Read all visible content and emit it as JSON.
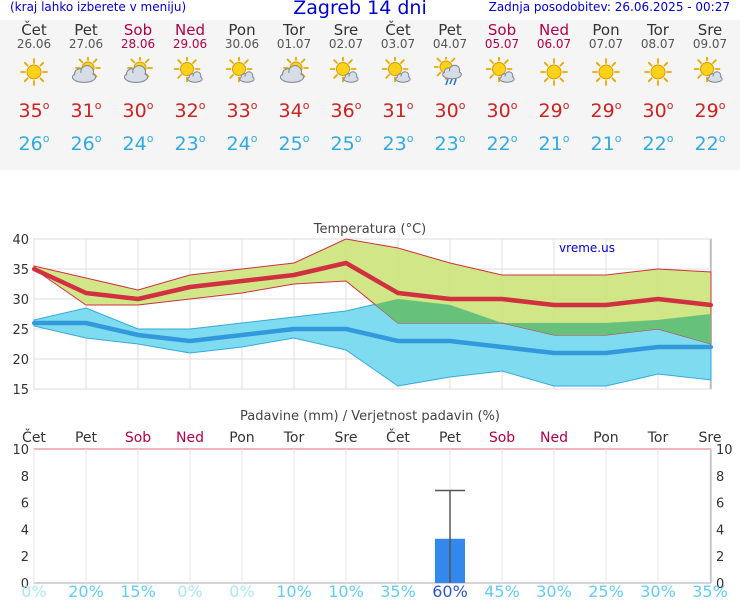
{
  "header": {
    "note": "(kraj lahko izberete v meniju)",
    "title": "Zagreb 14 dni",
    "updated": "Zadnja posodobitev: 26.06.2025 - 00:27"
  },
  "days": [
    {
      "name": "Čet",
      "date": "26.06",
      "weekend": false,
      "icon": "sun-icon",
      "tmax": "35",
      "tmin": "26"
    },
    {
      "name": "Pet",
      "date": "27.06",
      "weekend": false,
      "icon": "partly-cloudy-icon",
      "tmax": "31",
      "tmin": "26"
    },
    {
      "name": "Sob",
      "date": "28.06",
      "weekend": true,
      "icon": "partly-cloudy-icon",
      "tmax": "30",
      "tmin": "24"
    },
    {
      "name": "Ned",
      "date": "29.06",
      "weekend": true,
      "icon": "sun-small-cloud-icon",
      "tmax": "32",
      "tmin": "23"
    },
    {
      "name": "Pon",
      "date": "30.06",
      "weekend": false,
      "icon": "sun-small-cloud-icon",
      "tmax": "33",
      "tmin": "24"
    },
    {
      "name": "Tor",
      "date": "01.07",
      "weekend": false,
      "icon": "partly-cloudy-icon",
      "tmax": "34",
      "tmin": "25"
    },
    {
      "name": "Sre",
      "date": "02.07",
      "weekend": false,
      "icon": "sun-small-cloud-icon",
      "tmax": "36",
      "tmin": "25"
    },
    {
      "name": "Čet",
      "date": "03.07",
      "weekend": false,
      "icon": "sun-small-cloud-icon",
      "tmax": "31",
      "tmin": "23"
    },
    {
      "name": "Pet",
      "date": "04.07",
      "weekend": false,
      "icon": "sun-rain-icon",
      "tmax": "30",
      "tmin": "23"
    },
    {
      "name": "Sob",
      "date": "05.07",
      "weekend": true,
      "icon": "sun-small-cloud-icon",
      "tmax": "30",
      "tmin": "22"
    },
    {
      "name": "Ned",
      "date": "06.07",
      "weekend": true,
      "icon": "sun-icon",
      "tmax": "29",
      "tmin": "21"
    },
    {
      "name": "Pon",
      "date": "07.07",
      "weekend": false,
      "icon": "sun-icon",
      "tmax": "29",
      "tmin": "21"
    },
    {
      "name": "Tor",
      "date": "08.07",
      "weekend": false,
      "icon": "sun-icon",
      "tmax": "30",
      "tmin": "22"
    },
    {
      "name": "Sre",
      "date": "09.07",
      "weekend": false,
      "icon": "sun-small-cloud-icon",
      "tmax": "29",
      "tmin": "22"
    }
  ],
  "colors": {
    "max": "#d03040",
    "min": "#3399dd",
    "max_band": "#cce47a",
    "min_band": "#7fdcf0",
    "overlap": "#66c27a",
    "weekend": "#b0004a",
    "precip": "#3388ee",
    "prob": "#66ccee",
    "prob_high": "#3355cc"
  },
  "chart_data": [
    {
      "type": "line",
      "title": "Temperatura (°C)",
      "watermark": "vreme.us",
      "categories": [
        "Čet",
        "Pet",
        "Sob",
        "Ned",
        "Pon",
        "Tor",
        "Sre",
        "Čet",
        "Pet",
        "Sob",
        "Ned",
        "Pon",
        "Tor",
        "Sre"
      ],
      "ylim": [
        15,
        40
      ],
      "yticks": [
        "15",
        "20",
        "25",
        "30",
        "35",
        "40"
      ],
      "grid": true,
      "series": [
        {
          "name": "max",
          "values": [
            35,
            31,
            30,
            32,
            33,
            34,
            36,
            31,
            30,
            30,
            29,
            29,
            30,
            29
          ]
        },
        {
          "name": "min",
          "values": [
            26,
            26,
            24,
            23,
            24,
            25,
            25,
            23,
            23,
            22,
            21,
            21,
            22,
            22
          ]
        }
      ],
      "bands": [
        {
          "name": "max range",
          "low": [
            35,
            29,
            29,
            30,
            31,
            32.5,
            33,
            26,
            26,
            26,
            24,
            24,
            25,
            22.5
          ],
          "high": [
            35.5,
            33.5,
            31.5,
            34,
            35,
            36,
            40,
            38.5,
            36,
            34,
            34,
            34,
            35,
            34.5
          ]
        },
        {
          "name": "min range",
          "low": [
            25.5,
            23.5,
            22.5,
            21,
            22,
            23.5,
            21.5,
            15.5,
            17,
            18,
            15.5,
            15.5,
            17.5,
            16.5
          ],
          "high": [
            26.5,
            28.5,
            25,
            25,
            26,
            27,
            28,
            30,
            29,
            26,
            26,
            26,
            26.5,
            27.5
          ]
        }
      ]
    },
    {
      "type": "bar",
      "title": "Padavine (mm) / Verjetnost padavin (%)",
      "categories": [
        "Čet",
        "Pet",
        "Sob",
        "Ned",
        "Pon",
        "Tor",
        "Sre",
        "Čet",
        "Pet",
        "Sob",
        "Ned",
        "Pon",
        "Tor",
        "Sre"
      ],
      "ylim": [
        0,
        10
      ],
      "yticks": [
        "0",
        "2",
        "4",
        "6",
        "8",
        "10"
      ],
      "values": [
        0,
        0,
        0,
        0,
        0,
        0,
        0,
        0,
        3.3,
        0,
        0,
        0,
        0,
        0
      ],
      "error_high": [
        null,
        null,
        null,
        null,
        null,
        null,
        null,
        null,
        6.9,
        null,
        null,
        null,
        null,
        null
      ],
      "probability": [
        "0%",
        "20%",
        "15%",
        "0%",
        "0%",
        "10%",
        "10%",
        "35%",
        "60%",
        "45%",
        "30%",
        "25%",
        "30%",
        "35%"
      ]
    }
  ]
}
